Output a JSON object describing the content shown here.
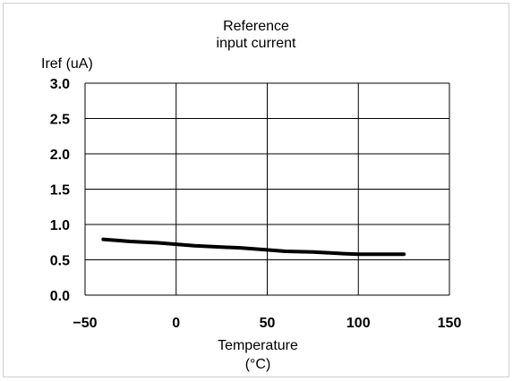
{
  "chart_data": {
    "type": "line",
    "title": [
      "Reference",
      "input current"
    ],
    "ylabel": "Iref (uA)",
    "xlabel": [
      "Temperature",
      "(°C)"
    ],
    "xlim": [
      -50,
      150
    ],
    "ylim": [
      0,
      3.0
    ],
    "x_ticks": [
      -50,
      0,
      50,
      100,
      150
    ],
    "x_tick_labels": [
      "−50",
      "0",
      "50",
      "100",
      "150"
    ],
    "y_ticks": [
      0,
      0.5,
      1.0,
      1.5,
      2.0,
      2.5,
      3.0
    ],
    "y_tick_labels": [
      "0.0",
      "0.5",
      "1.0",
      "1.5",
      "2.0",
      "2.5",
      "3.0"
    ],
    "grid": true,
    "series": [
      {
        "color": "#000000",
        "x": [
          -40,
          -25,
          -10,
          0,
          10,
          25,
          35,
          50,
          60,
          75,
          90,
          100,
          110,
          125
        ],
        "values": [
          0.79,
          0.76,
          0.74,
          0.72,
          0.7,
          0.68,
          0.67,
          0.64,
          0.62,
          0.61,
          0.59,
          0.58,
          0.58,
          0.58
        ]
      }
    ]
  }
}
